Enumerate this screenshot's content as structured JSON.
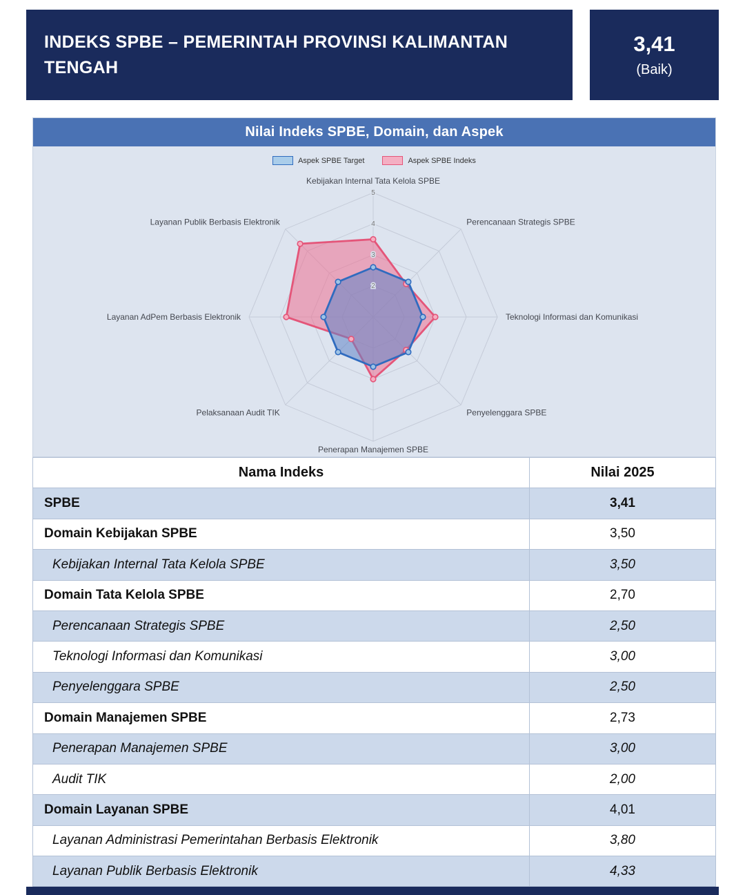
{
  "header": {
    "title": "INDEKS SPBE – PEMERINTAH PROVINSI KALIMANTAN TENGAH",
    "score": "3,41",
    "score_label": "(Baik)"
  },
  "chart_panel": {
    "title": "Nilai Indeks SPBE, Domain, dan Aspek"
  },
  "chart_data": {
    "type": "radar",
    "axes": [
      "Kebijakan Internal Tata Kelola SPBE",
      "Perencanaan Strategis SPBE",
      "Teknologi Informasi dan Komunikasi",
      "Penyelenggara SPBE",
      "Penerapan Manajemen SPBE",
      "Pelaksanaan Audit TIK",
      "Layanan AdPem Berbasis Elektronik",
      "Layanan Publik Berbasis Elektronik"
    ],
    "series": [
      {
        "name": "Aspek SPBE Target",
        "values": [
          2.6,
          2.6,
          2.6,
          2.6,
          2.6,
          2.6,
          2.6,
          2.6
        ],
        "color": "#2f6bbf",
        "fill": "rgba(96,133,199,0.55)",
        "point_fill": "#9fc3e6",
        "swatch": "#aacdea"
      },
      {
        "name": "Aspek SPBE Indeks",
        "values": [
          3.5,
          2.5,
          3.0,
          2.5,
          3.0,
          2.0,
          3.8,
          4.33
        ],
        "color": "#e45579",
        "fill": "rgba(239,113,146,0.55)",
        "point_fill": "#f6aec2",
        "swatch": "#f4afc3"
      }
    ],
    "scale": {
      "min": 1,
      "max": 5,
      "ticks": [
        2,
        3,
        4,
        5
      ]
    },
    "legend_position": "top",
    "grid": true,
    "grid_color": "#c5cbd8"
  },
  "table": {
    "headers": [
      "Nama Indeks",
      "Nilai 2025"
    ],
    "rows": [
      {
        "name": "SPBE",
        "value": "3,41",
        "type": "index"
      },
      {
        "name": "Domain Kebijakan SPBE",
        "value": "3,50",
        "type": "domain"
      },
      {
        "name": "Kebijakan Internal Tata Kelola SPBE",
        "value": "3,50",
        "type": "aspect"
      },
      {
        "name": "Domain Tata Kelola SPBE",
        "value": "2,70",
        "type": "domain"
      },
      {
        "name": "Perencanaan Strategis SPBE",
        "value": "2,50",
        "type": "aspect"
      },
      {
        "name": "Teknologi Informasi dan Komunikasi",
        "value": "3,00",
        "type": "aspect"
      },
      {
        "name": "Penyelenggara SPBE",
        "value": "2,50",
        "type": "aspect"
      },
      {
        "name": "Domain Manajemen SPBE",
        "value": "2,73",
        "type": "domain"
      },
      {
        "name": "Penerapan Manajemen SPBE",
        "value": "3,00",
        "type": "aspect"
      },
      {
        "name": "Audit TIK",
        "value": "2,00",
        "type": "aspect"
      },
      {
        "name": "Domain Layanan SPBE",
        "value": "4,01",
        "type": "domain"
      },
      {
        "name": "Layanan Administrasi Pemerintahan Berbasis Elektronik",
        "value": "3,80",
        "type": "aspect"
      },
      {
        "name": "Layanan Publik Berbasis Elektronik",
        "value": "4,33",
        "type": "aspect"
      }
    ]
  },
  "colors": {
    "navy": "#1a2b5c",
    "panel_title_bar": "#4a72b4",
    "panel_background": "#dde4ef",
    "row_alt": "#ccd9eb",
    "target_blue": "#2f6bbf",
    "indeks_pink": "#e45579"
  }
}
